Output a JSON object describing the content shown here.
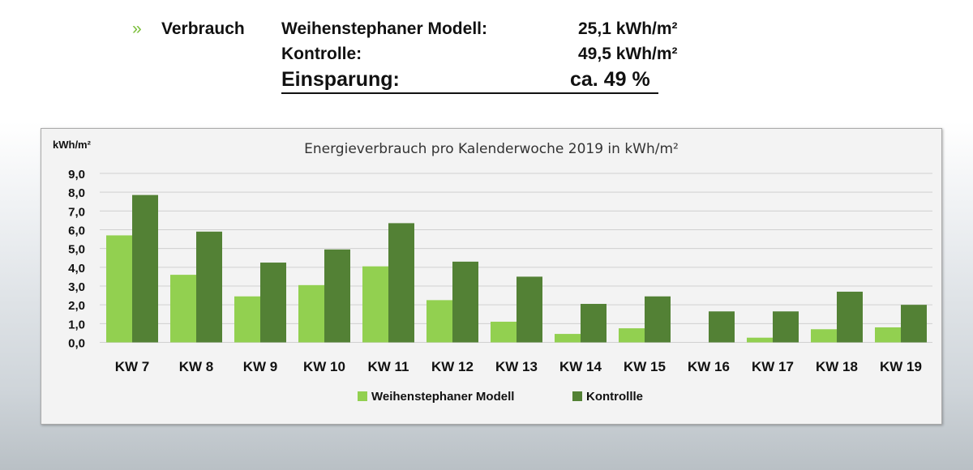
{
  "header": {
    "bullet": "»",
    "label": "Verbrauch",
    "rows": [
      {
        "name": "Weihenstephaner Modell:",
        "value": "25,1 kWh/m²"
      },
      {
        "name": "Kontrolle:",
        "value": "49,5 kWh/m²"
      }
    ],
    "savings_label": "Einsparung:",
    "savings_value": "ca. 49 %"
  },
  "chart_data": {
    "type": "bar",
    "title": "Energieverbrauch pro Kalenderwoche 2019 in kWh/m²",
    "ylabel": "kWh/m²",
    "xlabel": "",
    "ylim": [
      0,
      9
    ],
    "yticks": [
      "0,0",
      "1,0",
      "2,0",
      "3,0",
      "4,0",
      "5,0",
      "6,0",
      "7,0",
      "8,0",
      "9,0"
    ],
    "categories": [
      "KW 7",
      "KW 8",
      "KW 9",
      "KW 10",
      "KW 11",
      "KW 12",
      "KW 13",
      "KW 14",
      "KW 15",
      "KW 16",
      "KW 17",
      "KW 18",
      "KW 19"
    ],
    "series": [
      {
        "name": "Weihenstephaner Modell",
        "color": "#92d050",
        "values": [
          5.7,
          3.6,
          2.45,
          3.05,
          4.05,
          2.25,
          1.1,
          0.45,
          0.75,
          0,
          0.25,
          0.7,
          0.8
        ]
      },
      {
        "name": "Kontrollle",
        "color": "#538135",
        "values": [
          7.85,
          5.9,
          4.25,
          4.95,
          6.35,
          4.3,
          3.5,
          2.05,
          2.45,
          1.65,
          1.65,
          2.7,
          2.0
        ]
      }
    ],
    "grid": true,
    "legend": "bottom"
  }
}
